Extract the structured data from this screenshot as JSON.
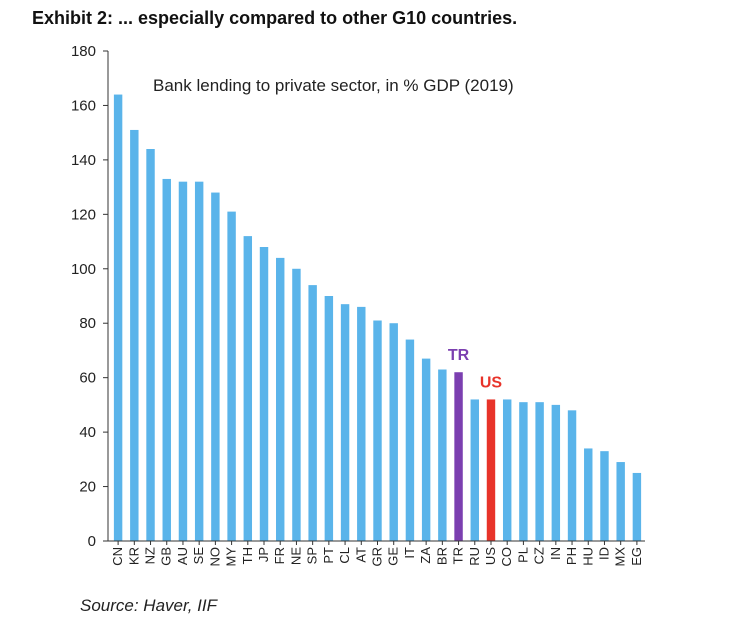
{
  "header": {
    "title": "Exhibit 2: ... especially compared to other G10 countries."
  },
  "footer": {
    "source": "Source: Haver, IIF"
  },
  "chart_data": {
    "type": "bar",
    "title": "Bank lending to private sector, in % GDP (2019)",
    "xlabel": "",
    "ylabel": "",
    "ylim": [
      0,
      180
    ],
    "yticks": [
      0,
      20,
      40,
      60,
      80,
      100,
      120,
      140,
      160,
      180
    ],
    "grid": false,
    "categories": [
      "CN",
      "KR",
      "NZ",
      "GB",
      "AU",
      "SE",
      "NO",
      "MY",
      "TH",
      "JP",
      "FR",
      "NE",
      "SP",
      "PT",
      "CL",
      "AT",
      "GR",
      "GE",
      "IT",
      "ZA",
      "BR",
      "TR",
      "RU",
      "US",
      "CO",
      "PL",
      "CZ",
      "IN",
      "PH",
      "HU",
      "ID",
      "MX",
      "EG"
    ],
    "values": [
      164,
      151,
      144,
      133,
      132,
      132,
      128,
      121,
      112,
      108,
      104,
      100,
      94,
      90,
      87,
      86,
      81,
      80,
      74,
      67,
      63,
      62,
      52,
      52,
      52,
      51,
      51,
      50,
      48,
      34,
      33,
      29,
      25
    ],
    "colors": {
      "default": "#5AB4EA",
      "TR": "#7B3FB0",
      "US": "#E8332A"
    },
    "annotations": [
      {
        "category": "TR",
        "text": "TR",
        "color": "#7B3FB0"
      },
      {
        "category": "US",
        "text": "US",
        "color": "#E8332A"
      }
    ]
  }
}
